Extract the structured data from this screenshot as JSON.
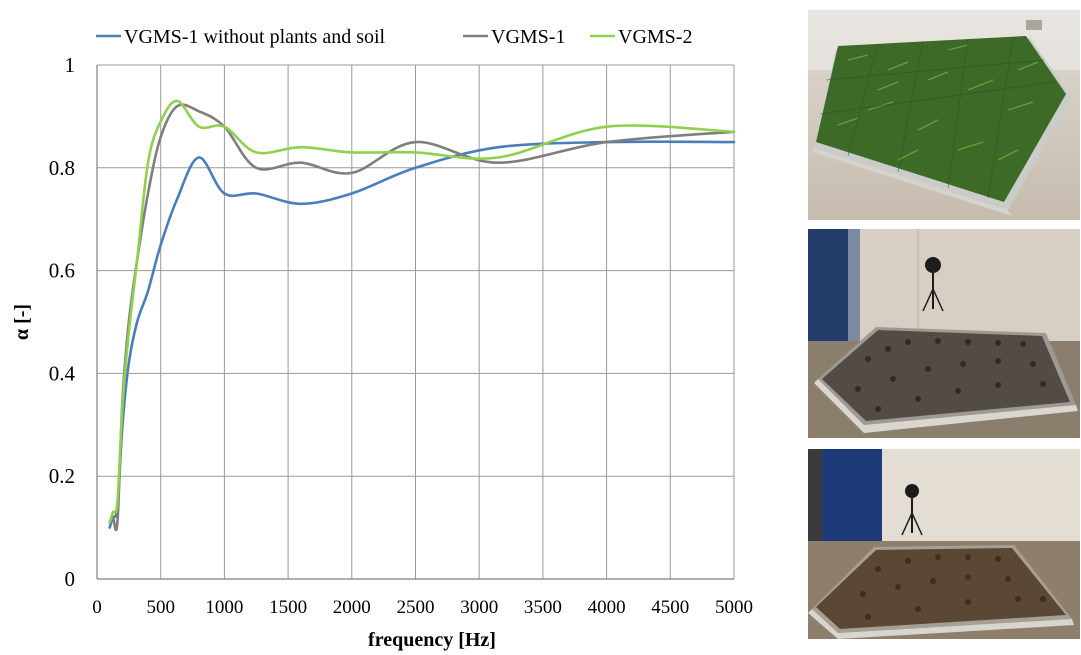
{
  "chart_data": {
    "type": "line",
    "title": "",
    "xlabel": "frequency [Hz]",
    "ylabel": "α [-]",
    "xlim": [
      0,
      5000
    ],
    "ylim": [
      0,
      1
    ],
    "xticks": [
      0,
      500,
      1000,
      1500,
      2000,
      2500,
      3000,
      3500,
      4000,
      4500,
      5000
    ],
    "yticks": [
      0,
      0.2,
      0.4,
      0.6,
      0.8,
      1
    ],
    "ytick_labels": [
      "0",
      "0.2",
      "0.4",
      "0.6",
      "0.8",
      "1"
    ],
    "grid": "major, both axes",
    "legend_position": "top",
    "series": [
      {
        "name": "VGMS-1 without plants and soil",
        "color": "#4a7ebb",
        "x": [
          100,
          125,
          160,
          200,
          250,
          315,
          400,
          500,
          630,
          800,
          1000,
          1250,
          1600,
          2000,
          2500,
          3150,
          4000,
          5000
        ],
        "y": [
          0.1,
          0.12,
          0.14,
          0.3,
          0.42,
          0.5,
          0.56,
          0.65,
          0.74,
          0.82,
          0.75,
          0.75,
          0.73,
          0.75,
          0.8,
          0.84,
          0.85,
          0.85
        ]
      },
      {
        "name": "VGMS-1",
        "color": "#7f7f7f",
        "x": [
          100,
          125,
          160,
          200,
          250,
          315,
          400,
          500,
          630,
          800,
          1000,
          1250,
          1600,
          2000,
          2500,
          3150,
          4000,
          5000
        ],
        "y": [
          0.11,
          0.12,
          0.11,
          0.35,
          0.5,
          0.62,
          0.75,
          0.86,
          0.92,
          0.91,
          0.88,
          0.8,
          0.81,
          0.79,
          0.85,
          0.81,
          0.85,
          0.87
        ]
      },
      {
        "name": "VGMS-2",
        "color": "#8fd14f",
        "x": [
          100,
          125,
          160,
          200,
          250,
          315,
          400,
          500,
          630,
          800,
          1000,
          1250,
          1600,
          2000,
          2500,
          3150,
          4000,
          5000
        ],
        "y": [
          0.11,
          0.13,
          0.15,
          0.34,
          0.48,
          0.62,
          0.81,
          0.89,
          0.93,
          0.88,
          0.88,
          0.83,
          0.84,
          0.83,
          0.83,
          0.82,
          0.88,
          0.87
        ]
      }
    ]
  },
  "photos": [
    {
      "subject": "vegetated green module mat with grass plants in a bare room"
    },
    {
      "subject": "empty modular mat on floor with microphone on tripod"
    },
    {
      "subject": "soil-filled modular mat on floor with microphone on tripod"
    }
  ]
}
